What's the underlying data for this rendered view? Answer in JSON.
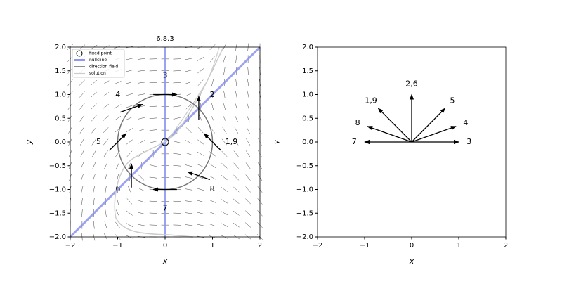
{
  "chart_data": [
    {
      "type": "phase",
      "title": "6.8.3",
      "x_label": "x",
      "y_label": "y",
      "xlim": [
        -2,
        2
      ],
      "ylim": [
        -2,
        2
      ],
      "xticks": [
        {
          "value": -2,
          "label": "−2"
        },
        {
          "value": -1,
          "label": "−1"
        },
        0,
        1,
        2
      ],
      "yticks": [
        {
          "value": -2,
          "label": "−2.0"
        },
        {
          "value": -1.5,
          "label": "−1.5"
        },
        {
          "value": -1,
          "label": "−1.0"
        },
        {
          "value": -0.5,
          "label": "−0.5"
        },
        {
          "value": 0,
          "label": "0.0"
        },
        {
          "value": 0.5,
          "label": "0.5"
        },
        {
          "value": 1,
          "label": "1.0"
        },
        {
          "value": 1.5,
          "label": "1.5"
        },
        {
          "value": 2,
          "label": "2.0"
        }
      ],
      "legend": [
        {
          "name": "fixed point",
          "color": "#000000"
        },
        {
          "name": "nullcline",
          "color": "#8f98f0"
        },
        {
          "name": "direction field",
          "color": "#444444"
        },
        {
          "name": "solution",
          "color": "#cccccc"
        }
      ],
      "fixed_points": {
        "x": [
          0
        ],
        "y": [
          0
        ]
      },
      "arrows": {
        "labels": [
          "1,9",
          "2",
          "3",
          "4",
          "5",
          "6",
          "7",
          "8"
        ],
        "x": [
          1,
          0.71,
          0,
          -0.71,
          -1,
          -0.71,
          0,
          0.71
        ],
        "y": [
          0,
          0.71,
          1,
          0.71,
          0,
          -0.71,
          -1,
          -0.71
        ],
        "u": [
          -0.71,
          0,
          1,
          0.94,
          0.71,
          0,
          -1,
          -0.94
        ],
        "v": [
          0.71,
          1,
          0,
          0.33,
          0.71,
          1,
          0,
          0.33
        ]
      }
    },
    {
      "type": "vectors",
      "x_label": "x",
      "y_label": "y",
      "xlim": [
        -2,
        2
      ],
      "ylim": [
        -2,
        2
      ],
      "xticks": [
        {
          "value": -2,
          "label": "−2"
        },
        {
          "value": -1,
          "label": "−1"
        },
        0,
        1,
        2
      ],
      "yticks": [
        {
          "value": -2,
          "label": "−2.0"
        },
        {
          "value": -1.5,
          "label": "−1.5"
        },
        {
          "value": -1,
          "label": "−1.0"
        },
        {
          "value": -0.5,
          "label": "−0.5"
        },
        {
          "value": 0,
          "label": "0.0"
        },
        {
          "value": 0.5,
          "label": "0.5"
        },
        {
          "value": 1,
          "label": "1.0"
        },
        {
          "value": 1.5,
          "label": "1.5"
        },
        {
          "value": 2,
          "label": "2.0"
        }
      ],
      "arrows": {
        "labels": [
          "3",
          "4",
          "5",
          "2,6",
          "1,9",
          "8",
          "7"
        ],
        "u": [
          1,
          0.94,
          0.71,
          0,
          -0.71,
          -0.94,
          -1
        ],
        "v": [
          0,
          0.33,
          0.71,
          1,
          0.71,
          0.33,
          0
        ]
      }
    }
  ]
}
